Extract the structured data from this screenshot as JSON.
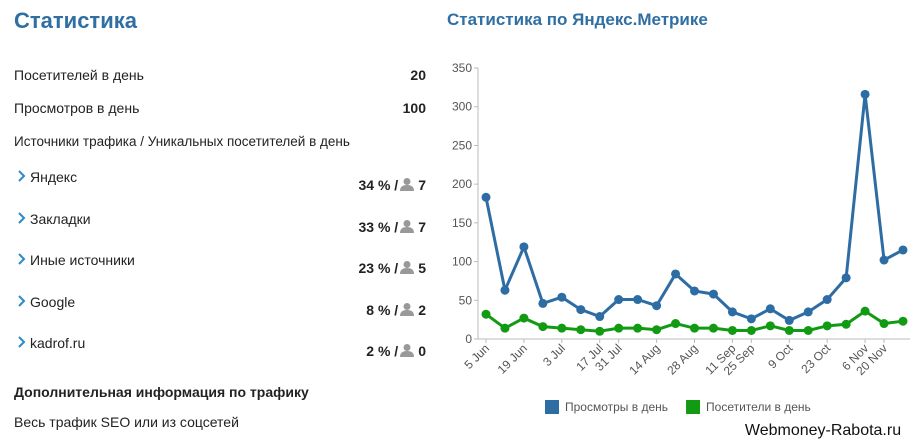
{
  "left": {
    "title": "Статистика",
    "stats": [
      {
        "label": "Посетителей в день",
        "value": "20"
      },
      {
        "label": "Просмотров в день",
        "value": "100"
      }
    ],
    "sources_heading": "Источники трафика / Уникальных посетителей в день",
    "sources": [
      {
        "name": "Яндекс",
        "share": "34 % /",
        "count": "7"
      },
      {
        "name": "Закладки",
        "share": "33 % /",
        "count": "7"
      },
      {
        "name": "Иные источники",
        "share": "23 % /",
        "count": "5"
      },
      {
        "name": "Google",
        "share": "8 % /",
        "count": "2"
      },
      {
        "name": "kadrof.ru",
        "share": "2 % /",
        "count": "0"
      }
    ],
    "extra_heading": "Дополнительная информация по трафику",
    "extra_text": "Весь трафик SEO или из соцсетей"
  },
  "chart_data": {
    "type": "line",
    "title": "Статистика по Яндекс.Метрике",
    "categories": [
      "5 Jun",
      null,
      "19 Jun",
      null,
      "3 Jul",
      null,
      "17 Jul",
      "31 Jul",
      null,
      "14 Aug",
      null,
      "28 Aug",
      null,
      "11 Sep",
      "25 Sep",
      null,
      "9 Oct",
      null,
      "23 Oct",
      null,
      "6 Nov",
      "20 Nov",
      null
    ],
    "series": [
      {
        "name": "Просмотры в день",
        "color": "#2e6da4",
        "values": [
          183,
          63,
          119,
          46,
          54,
          38,
          29,
          51,
          51,
          43,
          84,
          62,
          58,
          35,
          26,
          39,
          24,
          35,
          51,
          79,
          316,
          102,
          115
        ]
      },
      {
        "name": "Посетители в день",
        "color": "#129b12",
        "values": [
          32,
          14,
          27,
          16,
          14,
          12,
          10,
          14,
          14,
          12,
          20,
          14,
          14,
          11,
          11,
          17,
          11,
          11,
          17,
          19,
          36,
          20,
          23
        ]
      }
    ],
    "ylim": [
      0,
      350
    ],
    "yticks": [
      0,
      50,
      100,
      150,
      200,
      250,
      300,
      350
    ]
  },
  "watermark": "Webmoney-Rabota.ru"
}
